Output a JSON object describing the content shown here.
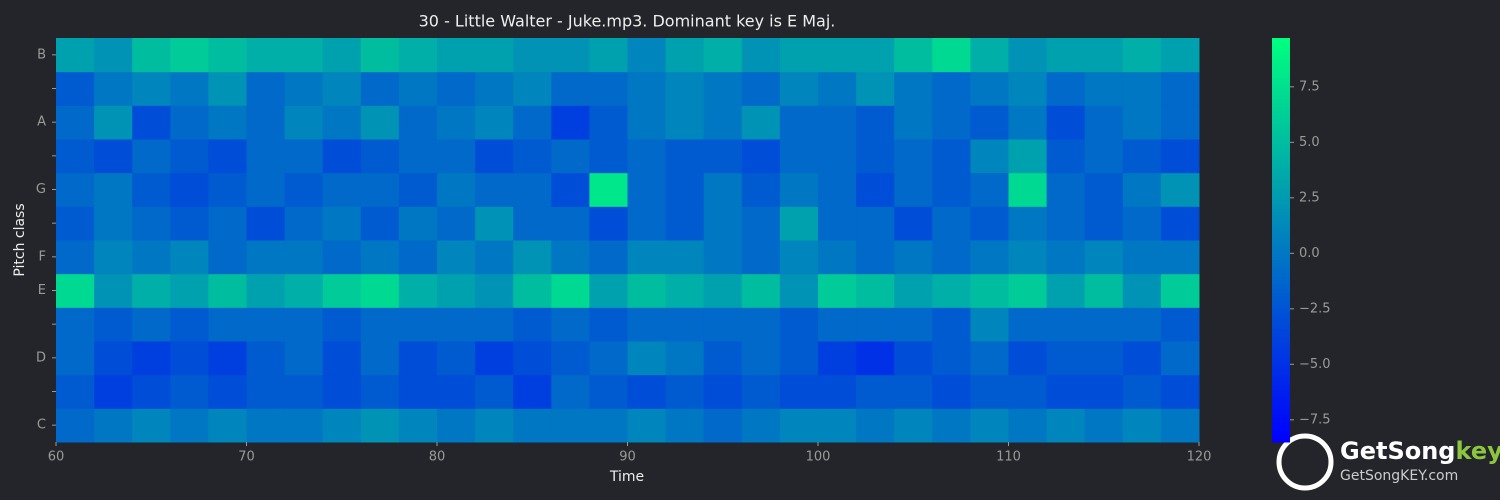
{
  "chart_data": {
    "type": "heatmap",
    "title": "30 - Little Walter - Juke.mp3. Dominant key is E Maj.",
    "xlabel": "Time",
    "ylabel": "Pitch class",
    "x": [
      61,
      63,
      65,
      67,
      69,
      71,
      73,
      75,
      77,
      79,
      81,
      83,
      85,
      87,
      89,
      91,
      93,
      95,
      97,
      99,
      101,
      103,
      105,
      107,
      109,
      111,
      113,
      115,
      117,
      119
    ],
    "categories": [
      "C",
      null,
      "D",
      null,
      "E",
      "F",
      null,
      "G",
      null,
      "A",
      null,
      "B"
    ],
    "z": [
      [
        -1,
        0,
        1,
        0,
        1,
        0,
        0,
        1,
        2,
        1,
        0,
        1,
        0,
        0,
        0,
        1,
        0,
        -1,
        0,
        1,
        1,
        0,
        1,
        0,
        1,
        0,
        1,
        0,
        1,
        0
      ],
      [
        -2,
        -4,
        -3,
        -2,
        -3,
        -2,
        -2,
        -3,
        -2,
        -3,
        -3,
        -2,
        -4,
        -1,
        -2,
        -3,
        -2,
        -3,
        -2,
        -3,
        -3,
        -2,
        -2,
        -3,
        -2,
        -2,
        -3,
        -3,
        -2,
        -3
      ],
      [
        -1,
        -3,
        -4,
        -3,
        -4,
        -2,
        -1,
        -3,
        -1,
        -3,
        -2,
        -4,
        -3,
        -2,
        -1,
        1,
        0,
        -2,
        -1,
        -2,
        -4,
        -5,
        -3,
        -2,
        -1,
        -3,
        -2,
        -2,
        -3,
        -1
      ],
      [
        -1,
        -2,
        -1,
        -2,
        -1,
        -1,
        -1,
        -2,
        -1,
        -1,
        -1,
        -1,
        -2,
        -1,
        -2,
        -1,
        -1,
        -1,
        -1,
        -2,
        -1,
        -1,
        -1,
        -2,
        1,
        -1,
        -1,
        -1,
        -1,
        -2
      ],
      [
        7,
        2,
        4,
        3,
        5,
        3,
        4,
        6,
        7,
        4,
        3,
        2,
        5,
        7,
        3,
        5,
        4,
        3,
        5,
        2,
        6,
        5,
        3,
        4,
        5,
        6,
        3,
        5,
        2,
        6
      ],
      [
        -1,
        1,
        0,
        1,
        -1,
        0,
        0,
        -1,
        0,
        -1,
        1,
        0,
        2,
        0,
        -1,
        1,
        1,
        0,
        -1,
        1,
        0,
        -1,
        0,
        -1,
        0,
        1,
        0,
        1,
        0,
        0
      ],
      [
        -2,
        0,
        -1,
        -2,
        -1,
        -3,
        -1,
        0,
        -2,
        0,
        -1,
        2,
        -1,
        -1,
        -3,
        -1,
        -2,
        0,
        -1,
        3,
        -1,
        -1,
        -3,
        -1,
        -2,
        0,
        -1,
        -2,
        -1,
        -3
      ],
      [
        -1,
        0,
        -2,
        -3,
        -2,
        -1,
        -2,
        -1,
        -1,
        -2,
        0,
        -1,
        -1,
        -3,
        8,
        -1,
        -2,
        0,
        -2,
        0,
        -1,
        -3,
        -1,
        -2,
        -1,
        7,
        -1,
        -2,
        0,
        2
      ],
      [
        -2,
        -3,
        -1,
        -2,
        -3,
        -1,
        -1,
        -3,
        -2,
        -1,
        -1,
        -3,
        -2,
        -1,
        -2,
        -1,
        -2,
        -2,
        -3,
        -1,
        -1,
        -2,
        -1,
        -2,
        1,
        3,
        -2,
        -1,
        -2,
        -3
      ],
      [
        -1,
        2,
        -3,
        -1,
        0,
        -1,
        1,
        0,
        2,
        -1,
        0,
        1,
        -1,
        -4,
        -2,
        0,
        1,
        0,
        2,
        -1,
        -1,
        -2,
        0,
        -1,
        -2,
        0,
        -3,
        -1,
        0,
        -1
      ],
      [
        -2,
        0,
        1,
        0,
        2,
        -1,
        0,
        1,
        -1,
        0,
        -1,
        0,
        1,
        -1,
        -1,
        0,
        1,
        0,
        -1,
        1,
        0,
        2,
        0,
        -1,
        0,
        1,
        -1,
        0,
        0,
        -1
      ],
      [
        3,
        2,
        5,
        6,
        5,
        4,
        4,
        3,
        5,
        4,
        3,
        3,
        2,
        2,
        3,
        1,
        3,
        4,
        2,
        3,
        3,
        3,
        5,
        7,
        4,
        2,
        3,
        3,
        4,
        3
      ]
    ],
    "colormap": "winter",
    "xlim": [
      60,
      120
    ],
    "xticks": [
      60,
      70,
      80,
      90,
      100,
      110,
      120
    ],
    "clim": [
      -8.5,
      9.7
    ],
    "cticks": [
      {
        "value": -7.5,
        "label": "−7.5"
      },
      {
        "value": -5,
        "label": "−5.0"
      },
      {
        "value": -2.5,
        "label": "−2.5"
      },
      {
        "value": 0,
        "label": "0.0"
      },
      {
        "value": 2.5,
        "label": "2.5"
      },
      {
        "value": 5,
        "label": "5.0"
      },
      7.5
    ]
  },
  "watermark": {
    "brand": "GetSong",
    "brand_accent": "key",
    "url": "GetSongKEY.com"
  }
}
